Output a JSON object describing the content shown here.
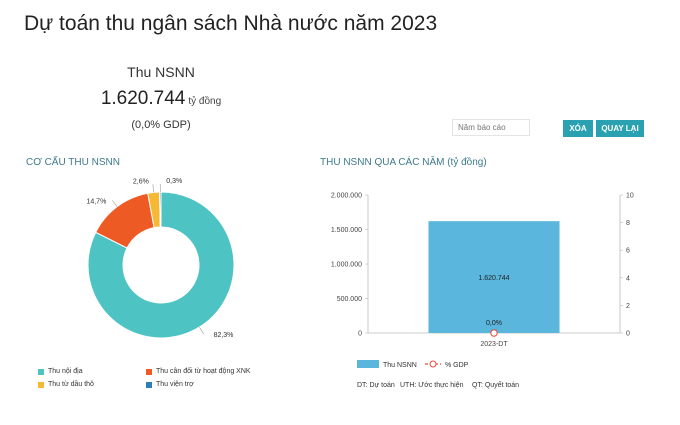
{
  "page": {
    "title": "Dự toán thu ngân sách Nhà nước năm 2023"
  },
  "summary": {
    "label": "Thu NSNN",
    "value": "1.620.744",
    "unit": "tỷ đồng",
    "gdp_open": "(",
    "gdp_value": "0,0%",
    "gdp_suffix": " GDP)"
  },
  "controls": {
    "year_placeholder": "Năm báo cáo",
    "clear_label": "XÓA",
    "back_label": "QUAY LẠI"
  },
  "structure_section": {
    "title": "CƠ CẤU THU NSNN"
  },
  "trend_section": {
    "title": "THU NSNN QUA CÁC NĂM (tỷ đồng)"
  },
  "notes": {
    "dt": "DT: Dự toán",
    "uth": "UTH: Ước thực hiện",
    "qt": "QT: Quyết toán"
  },
  "colors": {
    "domestic": "#4ec3c3",
    "export_import": "#ee5a24",
    "crude_oil": "#f5b935",
    "aid": "#2e7db8",
    "bar": "#5bb6de",
    "gdp_line": "#e84c3d",
    "button": "#2aa1b0"
  },
  "chart_data": [
    {
      "type": "pie",
      "labels": [
        "Thu nội địa",
        "Thu cân đối từ hoạt động XNK",
        "Thu từ dầu thô",
        "Thu viện trợ"
      ],
      "values": [
        82.3,
        14.7,
        2.6,
        0.3
      ],
      "data_labels": [
        "82,3%",
        "14,7%",
        "2,6%",
        "0,3%"
      ],
      "legend_position": "bottom"
    },
    {
      "type": "bar",
      "categories": [
        "2023-DT"
      ],
      "series": [
        {
          "name": "Thu NSNN",
          "values": [
            1620744
          ],
          "labels": [
            "1.620.744"
          ],
          "axis": "left"
        },
        {
          "name": "% GDP",
          "values": [
            0.0
          ],
          "labels": [
            "0,0%"
          ],
          "axis": "right",
          "mark": "line"
        }
      ],
      "ylim": [
        0,
        2000000
      ],
      "y_ticks": [
        "0",
        "500.000",
        "1.000.000",
        "1.500.000",
        "2.000.000"
      ],
      "y_tick_values": [
        0,
        500000,
        1000000,
        1500000,
        2000000
      ],
      "y2lim": [
        0,
        10
      ],
      "y2_ticks": [
        "0",
        "2",
        "4",
        "6",
        "8",
        "10"
      ],
      "y2_tick_values": [
        0,
        2,
        4,
        6,
        8,
        10
      ],
      "grid": false,
      "legend_position": "bottom"
    }
  ]
}
